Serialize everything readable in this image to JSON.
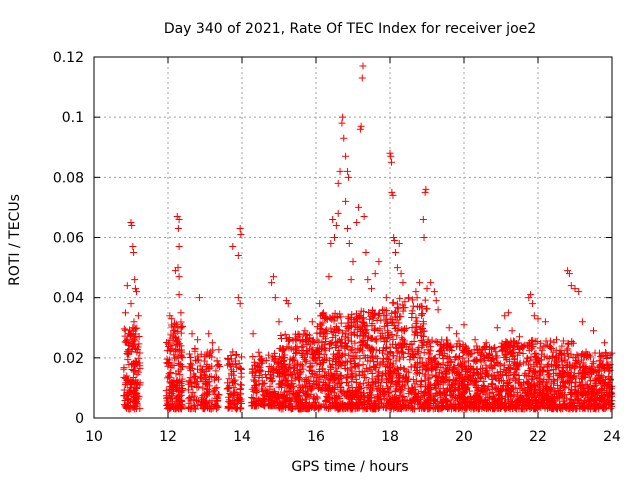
{
  "chart_data": {
    "type": "scatter",
    "title": "Day 340 of 2021, Rate Of TEC Index for receiver joe2",
    "xlabel": "GPS time / hours",
    "ylabel": "ROTI / TECUs",
    "xlim": [
      10,
      24
    ],
    "ylim": [
      0,
      0.12
    ],
    "x_ticks": [
      10,
      12,
      14,
      16,
      18,
      20,
      22,
      24
    ],
    "x_tick_labels": [
      "10",
      "12",
      "14",
      "16",
      "18",
      "20",
      "22",
      "24"
    ],
    "y_ticks": [
      0,
      0.02,
      0.04,
      0.06,
      0.08,
      0.1,
      0.12
    ],
    "y_tick_labels": [
      "0",
      "0.02",
      "0.04",
      "0.06",
      "0.08",
      "0.1",
      "0.12"
    ],
    "grid": true,
    "marker": "+",
    "marker_color": "#ff0000",
    "series": [
      {
        "name": "ROTI",
        "points": [
          [
            10.85,
            0.035
          ],
          [
            10.9,
            0.044
          ],
          [
            10.95,
            0.028
          ],
          [
            11.0,
            0.065
          ],
          [
            11.02,
            0.064
          ],
          [
            11.05,
            0.057
          ],
          [
            11.07,
            0.055
          ],
          [
            11.1,
            0.046
          ],
          [
            11.12,
            0.043
          ],
          [
            11.15,
            0.042
          ],
          [
            11.0,
            0.038
          ],
          [
            11.05,
            0.03
          ],
          [
            11.08,
            0.032
          ],
          [
            11.2,
            0.034
          ],
          [
            10.92,
            0.025
          ],
          [
            12.05,
            0.034
          ],
          [
            12.1,
            0.033
          ],
          [
            12.15,
            0.029
          ],
          [
            12.2,
            0.049
          ],
          [
            12.25,
            0.067
          ],
          [
            12.3,
            0.066
          ],
          [
            12.28,
            0.063
          ],
          [
            12.3,
            0.057
          ],
          [
            12.27,
            0.05
          ],
          [
            12.3,
            0.047
          ],
          [
            12.3,
            0.041
          ],
          [
            12.35,
            0.035
          ],
          [
            12.35,
            0.03
          ],
          [
            12.85,
            0.04
          ],
          [
            12.65,
            0.028
          ],
          [
            12.8,
            0.026
          ],
          [
            13.1,
            0.028
          ],
          [
            13.2,
            0.025
          ],
          [
            13.95,
            0.063
          ],
          [
            13.97,
            0.061
          ],
          [
            13.75,
            0.057
          ],
          [
            13.9,
            0.054
          ],
          [
            13.9,
            0.04
          ],
          [
            13.95,
            0.038
          ],
          [
            13.75,
            0.022
          ],
          [
            14.3,
            0.028
          ],
          [
            14.8,
            0.045
          ],
          [
            14.85,
            0.047
          ],
          [
            14.9,
            0.04
          ],
          [
            15.0,
            0.032
          ],
          [
            15.2,
            0.039
          ],
          [
            15.25,
            0.038
          ],
          [
            15.5,
            0.033
          ],
          [
            15.7,
            0.029
          ],
          [
            15.9,
            0.032
          ],
          [
            16.1,
            0.038
          ],
          [
            16.2,
            0.035
          ],
          [
            16.35,
            0.047
          ],
          [
            16.4,
            0.058
          ],
          [
            16.45,
            0.066
          ],
          [
            16.5,
            0.06
          ],
          [
            16.55,
            0.064
          ],
          [
            16.6,
            0.068
          ],
          [
            16.6,
            0.078
          ],
          [
            16.65,
            0.082
          ],
          [
            16.7,
            0.098
          ],
          [
            16.72,
            0.1
          ],
          [
            16.75,
            0.093
          ],
          [
            16.8,
            0.087
          ],
          [
            16.85,
            0.082
          ],
          [
            16.88,
            0.08
          ],
          [
            16.8,
            0.072
          ],
          [
            16.85,
            0.063
          ],
          [
            16.9,
            0.058
          ],
          [
            16.95,
            0.046
          ],
          [
            17.0,
            0.052
          ],
          [
            17.1,
            0.065
          ],
          [
            17.15,
            0.07
          ],
          [
            17.2,
            0.096
          ],
          [
            17.22,
            0.097
          ],
          [
            17.25,
            0.113
          ],
          [
            17.27,
            0.117
          ],
          [
            17.3,
            0.067
          ],
          [
            17.35,
            0.055
          ],
          [
            17.4,
            0.046
          ],
          [
            17.5,
            0.043
          ],
          [
            17.6,
            0.048
          ],
          [
            17.7,
            0.052
          ],
          [
            17.8,
            0.036
          ],
          [
            17.9,
            0.04
          ],
          [
            18.0,
            0.088
          ],
          [
            18.02,
            0.087
          ],
          [
            18.04,
            0.085
          ],
          [
            18.05,
            0.075
          ],
          [
            18.08,
            0.074
          ],
          [
            18.1,
            0.06
          ],
          [
            18.12,
            0.059
          ],
          [
            18.15,
            0.055
          ],
          [
            18.2,
            0.05
          ],
          [
            18.25,
            0.058
          ],
          [
            18.3,
            0.048
          ],
          [
            18.35,
            0.045
          ],
          [
            18.5,
            0.04
          ],
          [
            18.7,
            0.042
          ],
          [
            18.8,
            0.045
          ],
          [
            18.9,
            0.066
          ],
          [
            18.95,
            0.075
          ],
          [
            18.97,
            0.076
          ],
          [
            18.92,
            0.06
          ],
          [
            19.0,
            0.043
          ],
          [
            19.1,
            0.045
          ],
          [
            19.2,
            0.042
          ],
          [
            19.25,
            0.039
          ],
          [
            19.3,
            0.036
          ],
          [
            19.6,
            0.03
          ],
          [
            19.8,
            0.028
          ],
          [
            20.0,
            0.031
          ],
          [
            20.3,
            0.026
          ],
          [
            20.6,
            0.025
          ],
          [
            20.9,
            0.03
          ],
          [
            21.1,
            0.034
          ],
          [
            21.2,
            0.035
          ],
          [
            21.3,
            0.029
          ],
          [
            21.5,
            0.027
          ],
          [
            21.75,
            0.04
          ],
          [
            21.8,
            0.041
          ],
          [
            21.85,
            0.038
          ],
          [
            21.9,
            0.034
          ],
          [
            22.0,
            0.033
          ],
          [
            22.2,
            0.032
          ],
          [
            22.5,
            0.026
          ],
          [
            22.8,
            0.049
          ],
          [
            22.85,
            0.048
          ],
          [
            22.9,
            0.044
          ],
          [
            23.0,
            0.043
          ],
          [
            23.1,
            0.042
          ],
          [
            23.2,
            0.032
          ],
          [
            23.5,
            0.029
          ],
          [
            23.8,
            0.025
          ],
          [
            23.95,
            0.021
          ]
        ],
        "bands": [
          [
            10.8,
            11.25,
            0.003,
            0.03,
            55
          ],
          [
            11.95,
            12.4,
            0.003,
            0.032,
            60
          ],
          [
            12.55,
            13.4,
            0.003,
            0.024,
            55
          ],
          [
            13.6,
            14.0,
            0.003,
            0.022,
            30
          ],
          [
            14.25,
            15.0,
            0.004,
            0.022,
            60
          ],
          [
            15.0,
            16.0,
            0.003,
            0.028,
            110
          ],
          [
            16.0,
            17.0,
            0.003,
            0.035,
            120
          ],
          [
            17.0,
            18.0,
            0.003,
            0.036,
            120
          ],
          [
            18.0,
            19.0,
            0.003,
            0.04,
            120
          ],
          [
            19.0,
            20.0,
            0.003,
            0.026,
            110
          ],
          [
            20.0,
            21.0,
            0.003,
            0.024,
            110
          ],
          [
            21.0,
            22.0,
            0.003,
            0.026,
            110
          ],
          [
            22.0,
            23.0,
            0.003,
            0.026,
            110
          ],
          [
            23.0,
            24.0,
            0.003,
            0.022,
            110
          ]
        ]
      }
    ]
  }
}
